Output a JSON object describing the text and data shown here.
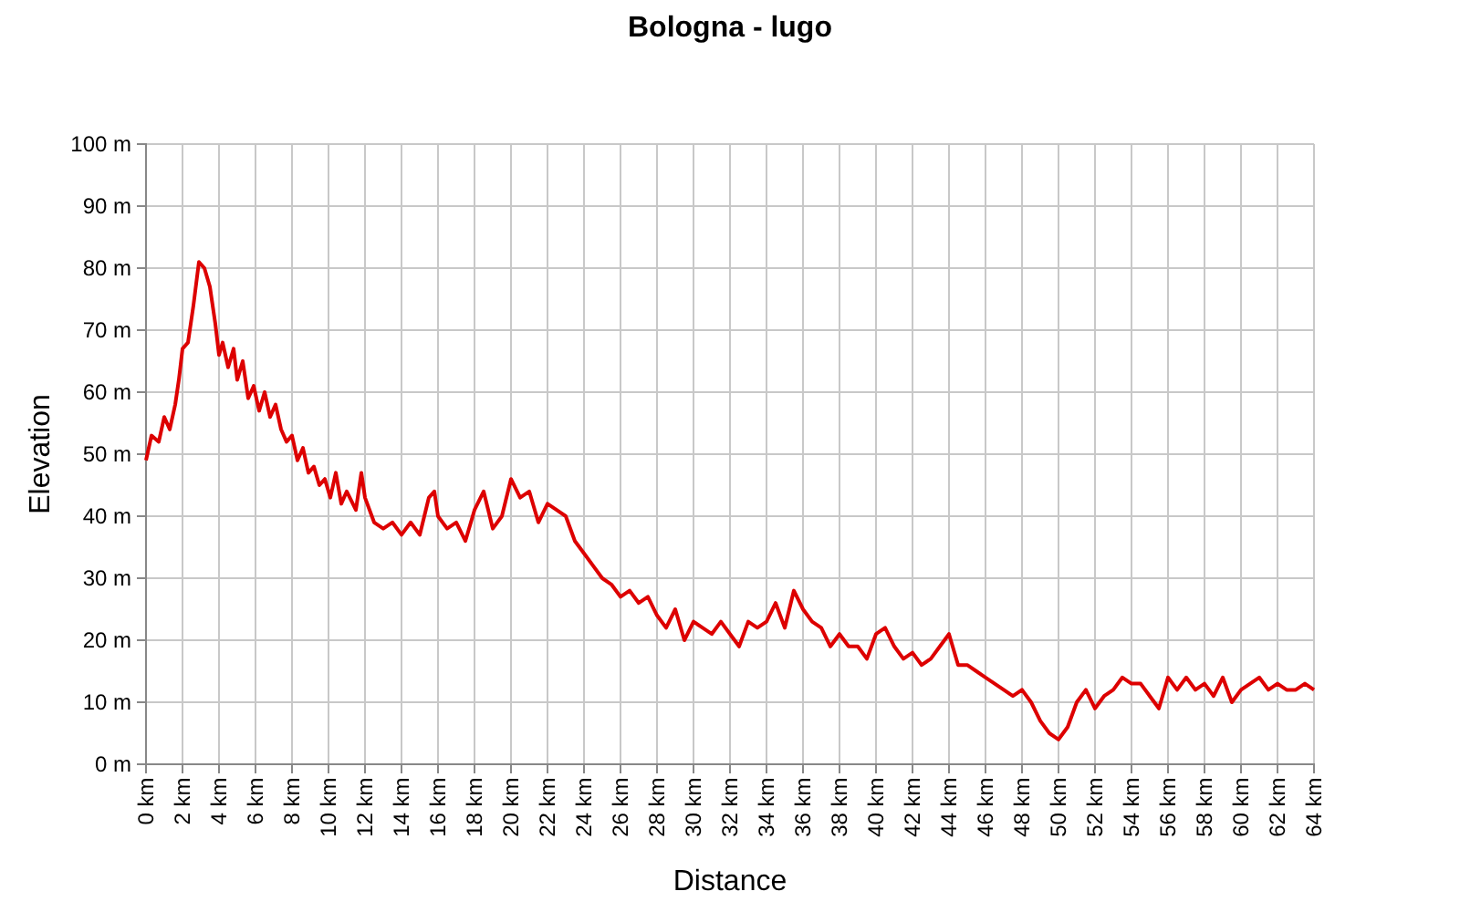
{
  "chart_data": {
    "type": "line",
    "title": "Bologna - lugo",
    "xlabel": "Distance",
    "ylabel": "Elevation",
    "grid": true,
    "marker": "none",
    "line_style": "solid",
    "xlim": [
      0,
      64
    ],
    "ylim": [
      0,
      100
    ],
    "xticks": [
      {
        "value": 0,
        "label": "0 km"
      },
      {
        "value": 2,
        "label": "2 km"
      },
      {
        "value": 4,
        "label": "4 km"
      },
      {
        "value": 6,
        "label": "6 km"
      },
      {
        "value": 8,
        "label": "8 km"
      },
      {
        "value": 10,
        "label": "10 km"
      },
      {
        "value": 12,
        "label": "12 km"
      },
      {
        "value": 14,
        "label": "14 km"
      },
      {
        "value": 16,
        "label": "16 km"
      },
      {
        "value": 18,
        "label": "18 km"
      },
      {
        "value": 20,
        "label": "20 km"
      },
      {
        "value": 22,
        "label": "22 km"
      },
      {
        "value": 24,
        "label": "24 km"
      },
      {
        "value": 26,
        "label": "26 km"
      },
      {
        "value": 28,
        "label": "28 km"
      },
      {
        "value": 30,
        "label": "30 km"
      },
      {
        "value": 32,
        "label": "32 km"
      },
      {
        "value": 34,
        "label": "34 km"
      },
      {
        "value": 36,
        "label": "36 km"
      },
      {
        "value": 38,
        "label": "38 km"
      },
      {
        "value": 40,
        "label": "40 km"
      },
      {
        "value": 42,
        "label": "42 km"
      },
      {
        "value": 44,
        "label": "44 km"
      },
      {
        "value": 46,
        "label": "46 km"
      },
      {
        "value": 48,
        "label": "48 km"
      },
      {
        "value": 50,
        "label": "50 km"
      },
      {
        "value": 52,
        "label": "52 km"
      },
      {
        "value": 54,
        "label": "54 km"
      },
      {
        "value": 56,
        "label": "56 km"
      },
      {
        "value": 58,
        "label": "58 km"
      },
      {
        "value": 60,
        "label": "60 km"
      },
      {
        "value": 62,
        "label": "62 km"
      },
      {
        "value": 64,
        "label": "64 km"
      }
    ],
    "yticks": [
      {
        "value": 0,
        "label": "0 m"
      },
      {
        "value": 10,
        "label": "10 m"
      },
      {
        "value": 20,
        "label": "20 m"
      },
      {
        "value": 30,
        "label": "30 m"
      },
      {
        "value": 40,
        "label": "40 m"
      },
      {
        "value": 50,
        "label": "50 m"
      },
      {
        "value": 60,
        "label": "60 m"
      },
      {
        "value": 70,
        "label": "70 m"
      },
      {
        "value": 80,
        "label": "80 m"
      },
      {
        "value": 90,
        "label": "90 m"
      },
      {
        "value": 100,
        "label": "100 m"
      }
    ],
    "x": [
      0,
      0.3,
      0.7,
      1,
      1.3,
      1.6,
      1.8,
      2,
      2.3,
      2.6,
      2.9,
      3.2,
      3.5,
      3.8,
      4,
      4.2,
      4.5,
      4.8,
      5,
      5.3,
      5.6,
      5.9,
      6.2,
      6.5,
      6.8,
      7.1,
      7.4,
      7.7,
      8,
      8.3,
      8.6,
      8.9,
      9.2,
      9.5,
      9.8,
      10.1,
      10.4,
      10.7,
      11,
      11.5,
      11.8,
      12,
      12.5,
      13,
      13.5,
      14,
      14.5,
      15,
      15.5,
      15.8,
      16,
      16.5,
      17,
      17.5,
      18,
      18.5,
      19,
      19.5,
      20,
      20.5,
      21,
      21.5,
      22,
      22.5,
      23,
      23.5,
      24,
      24.5,
      25,
      25.5,
      26,
      26.5,
      27,
      27.5,
      28,
      28.5,
      29,
      29.5,
      30,
      30.5,
      31,
      31.5,
      32,
      32.5,
      33,
      33.5,
      34,
      34.5,
      35,
      35.5,
      36,
      36.5,
      37,
      37.5,
      38,
      38.5,
      39,
      39.5,
      40,
      40.5,
      41,
      41.5,
      42,
      42.5,
      43,
      43.5,
      44,
      44.5,
      45,
      45.5,
      46,
      46.5,
      47,
      47.5,
      48,
      48.5,
      49,
      49.5,
      50,
      50.5,
      51,
      51.5,
      52,
      52.5,
      53,
      53.5,
      54,
      54.5,
      55,
      55.5,
      56,
      56.5,
      57,
      57.5,
      58,
      58.5,
      59,
      59.5,
      60,
      60.5,
      61,
      61.5,
      62,
      62.5,
      63,
      63.5,
      64
    ],
    "series": [
      {
        "color": "#dd0000",
        "values": [
          49,
          53,
          52,
          56,
          54,
          58,
          62,
          67,
          68,
          74,
          81,
          80,
          77,
          71,
          66,
          68,
          64,
          67,
          62,
          65,
          59,
          61,
          57,
          60,
          56,
          58,
          54,
          52,
          53,
          49,
          51,
          47,
          48,
          45,
          46,
          43,
          47,
          42,
          44,
          41,
          47,
          43,
          39,
          38,
          39,
          37,
          39,
          37,
          43,
          44,
          40,
          38,
          39,
          36,
          41,
          44,
          38,
          40,
          46,
          43,
          44,
          39,
          42,
          41,
          40,
          36,
          34,
          32,
          30,
          29,
          27,
          28,
          26,
          27,
          24,
          22,
          25,
          20,
          23,
          22,
          21,
          23,
          21,
          19,
          23,
          22,
          23,
          26,
          22,
          28,
          25,
          23,
          22,
          19,
          21,
          19,
          19,
          17,
          21,
          22,
          19,
          17,
          18,
          16,
          17,
          19,
          21,
          16,
          16,
          15,
          14,
          13,
          12,
          11,
          12,
          10,
          7,
          5,
          4,
          6,
          10,
          12,
          9,
          11,
          12,
          14,
          13,
          13,
          11,
          9,
          14,
          12,
          14,
          12,
          13,
          11,
          14,
          10,
          12,
          13,
          14,
          12,
          13,
          12,
          12,
          13,
          12
        ]
      }
    ]
  }
}
